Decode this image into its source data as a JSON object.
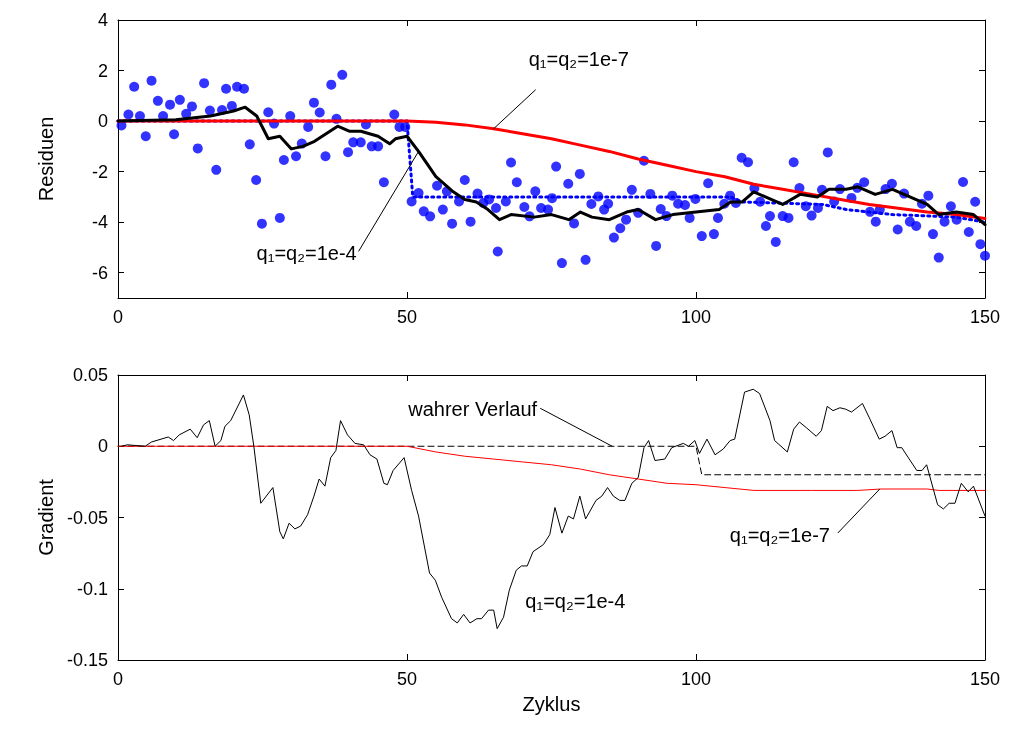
{
  "chart_data": [
    {
      "type": "scatter",
      "ylabel": "Residuen",
      "xlim": [
        0,
        150
      ],
      "xticks": [
        0,
        50,
        100,
        150
      ],
      "ylim": [
        -7,
        4
      ],
      "yticks": [
        -6,
        -4,
        -2,
        0,
        2,
        4
      ],
      "grid": false,
      "series": [
        {
          "color": "#0000ff",
          "marker": "circle",
          "x": [
            0.6,
            1.8,
            2.8,
            3.8,
            4.8,
            5.8,
            6.9,
            7.8,
            9,
            9.7,
            10.7,
            11.8,
            12.8,
            13.8,
            14.9,
            15.9,
            17,
            18,
            18.7,
            19.7,
            20.6,
            21.8,
            22.8,
            23.9,
            24.9,
            26,
            27,
            28,
            28.7,
            29.8,
            30.8,
            31.8,
            32.9,
            33.9,
            34.9,
            35.9,
            36.9,
            37.8,
            38.8,
            39.8,
            40.7,
            42,
            42.9,
            43.9,
            45,
            46,
            47.8,
            48.7,
            49.7,
            50.8,
            52,
            52.9,
            54,
            55.2,
            56.2,
            56.9,
            57.8,
            59,
            60,
            61,
            62.2,
            63.2,
            64.2,
            65.4,
            65.7,
            67.1,
            68,
            69,
            70.3,
            71.2,
            72.2,
            73.2,
            74.4,
            75.1,
            75.8,
            76.8,
            77.9,
            78.9,
            79.9,
            80.9,
            81.9,
            83.1,
            84.1,
            84.8,
            85.8,
            86.9,
            87.9,
            88.9,
            90,
            91,
            92.1,
            93.1,
            93.9,
            94.9,
            95.9,
            96.9,
            98.1,
            98.9,
            99.9,
            101,
            102.1,
            103.1,
            103.8,
            104.9,
            105.9,
            106.9,
            107.9,
            109,
            110.1,
            111.1,
            112.1,
            112.8,
            113.8,
            115,
            116,
            116.9,
            117.9,
            119,
            120,
            121.1,
            121.8,
            122.8,
            123.9,
            124.9,
            126.9,
            127.9,
            129.1,
            130.1,
            131.1,
            131.8,
            132.8,
            133.9,
            134.9,
            136,
            137,
            138.1,
            139.1,
            140.2,
            141,
            142,
            143,
            144.1,
            145.1,
            146.2,
            147.2,
            148.3,
            149.2,
            150
          ],
          "values": [
            -0.17,
            0.26,
            1.36,
            0.2,
            -0.6,
            1.6,
            0.8,
            0.2,
            0.65,
            -0.52,
            0.84,
            0.29,
            0.58,
            -1.08,
            1.5,
            0.42,
            -1.93,
            0.44,
            1.28,
            0.6,
            1.36,
            1.28,
            -0.92,
            -2.33,
            -4.06,
            0.35,
            -0.1,
            -3.83,
            -1.54,
            0.2,
            -1.39,
            -0.89,
            -0.23,
            0.73,
            0.34,
            -1.39,
            1.44,
            0.09,
            1.83,
            -1.23,
            -0.84,
            -0.84,
            -0.13,
            -1,
            -1,
            -2.42,
            0.26,
            -0.23,
            -0.23,
            -3.18,
            -2.85,
            -3.57,
            -3.77,
            -2.56,
            -3.5,
            -2.78,
            -4.06,
            -3.18,
            -2.33,
            -3.98,
            -2.87,
            -3.24,
            -3.1,
            -3.44,
            -5.16,
            -3.18,
            -1.64,
            -2.42,
            -3.4,
            -3.77,
            -2.78,
            -3.44,
            -3.5,
            -3.05,
            -1.8,
            -5.62,
            -2.48,
            -4.05,
            -2.09,
            -5.49,
            -3.28,
            -2.98,
            -3.5,
            -3.27,
            -4.61,
            -4.24,
            -3.9,
            -2.72,
            -3.63,
            -1.57,
            -2.88,
            -4.94,
            -3.48,
            -3.76,
            -2.95,
            -3.27,
            -3.32,
            -3.83,
            -3.08,
            -4.55,
            -2.46,
            -4.47,
            -3.83,
            -3.27,
            -2.95,
            -3.24,
            -1.45,
            -1.63,
            -2.66,
            -3.19,
            -4.15,
            -3.76,
            -4.78,
            -3.76,
            -3.83,
            -1.63,
            -2.65,
            -3.37,
            -3.74,
            -3.44,
            -2.72,
            -1.24,
            -3.18,
            -2.69,
            -3.04,
            -2.64,
            -2.42,
            -3.59,
            -3.98,
            -3.5,
            -2.69,
            -2.48,
            -4.29,
            -2.87,
            -3.98,
            -4.15,
            -3.27,
            -2.95,
            -4.47,
            -5.4,
            -3.98,
            -3.37,
            -3.9,
            -2.41,
            -4.39,
            -3.19,
            -4.87,
            -5.33
          ]
        },
        {
          "type": "line",
          "color": "#0000ff",
          "line_style": "dotted",
          "x": [
            0,
            50,
            51,
            106,
            108,
            122,
            126,
            134,
            145,
            150
          ],
          "values": [
            0,
            0,
            -3,
            -3,
            -3.2,
            -3.3,
            -3.5,
            -3.7,
            -3.8,
            -4
          ]
        },
        {
          "type": "line",
          "color": "#ff0000",
          "line_style": "solid",
          "x": [
            0,
            50,
            55,
            60,
            65,
            70,
            75,
            80,
            85,
            90,
            95,
            100,
            105,
            110,
            115,
            120,
            125,
            130,
            135,
            140,
            145,
            150
          ],
          "values": [
            0,
            0,
            -0.05,
            -0.15,
            -0.3,
            -0.5,
            -0.7,
            -0.95,
            -1.2,
            -1.5,
            -1.75,
            -2,
            -2.2,
            -2.5,
            -2.7,
            -2.9,
            -3.1,
            -3.3,
            -3.45,
            -3.6,
            -3.7,
            -3.85
          ]
        },
        {
          "type": "line",
          "color": "#000000",
          "line_style": "solid",
          "x": [
            0,
            10,
            16,
            20,
            22,
            24,
            26,
            28,
            30,
            32,
            34,
            36,
            38,
            40,
            42,
            45,
            47,
            48,
            50,
            52,
            55,
            58,
            60,
            62,
            64,
            66,
            68,
            72,
            75,
            78,
            80,
            82,
            85,
            88,
            90,
            93,
            96,
            100,
            104,
            106,
            108,
            110,
            113,
            115,
            118,
            121,
            123,
            126,
            128,
            131,
            134,
            137,
            140,
            142,
            145,
            148,
            150
          ],
          "values": [
            0,
            0.05,
            0.2,
            0.4,
            0.55,
            0.2,
            -0.7,
            -0.6,
            -1.1,
            -1,
            -0.8,
            -0.5,
            -0.2,
            -0.4,
            -0.4,
            -0.6,
            -0.9,
            -0.7,
            -0.6,
            -1.2,
            -2.2,
            -2.8,
            -3.1,
            -3.2,
            -3.5,
            -3.9,
            -3.7,
            -3.8,
            -3.7,
            -3.9,
            -3.6,
            -3.8,
            -3.9,
            -3.6,
            -3.5,
            -3.9,
            -3.7,
            -3.6,
            -3.5,
            -3.2,
            -3.2,
            -2.8,
            -3.1,
            -3.3,
            -2.9,
            -3,
            -2.7,
            -2.7,
            -2.6,
            -2.9,
            -2.7,
            -3,
            -3.3,
            -3.7,
            -3.6,
            -3.7,
            -4.1
          ]
        }
      ],
      "annotations": [
        {
          "text": "q₁=q₂=1e-7",
          "x": 65,
          "y": -0.3
        },
        {
          "text": "q₁=q₂=1e-4",
          "x": 52,
          "y": -1.2
        }
      ]
    },
    {
      "type": "line",
      "xlabel": "Zyklus",
      "ylabel": "Gradient",
      "xlim": [
        0,
        150
      ],
      "xticks": [
        0,
        50,
        100,
        150
      ],
      "ylim": [
        -0.15,
        0.05
      ],
      "yticks": [
        -0.15,
        -0.1,
        -0.05,
        0,
        0.05
      ],
      "grid": false,
      "series": [
        {
          "color": "#000000",
          "line_style": "dashed",
          "x": [
            0,
            100,
            101,
            150
          ],
          "values": [
            0,
            0,
            -0.02,
            -0.02
          ]
        },
        {
          "color": "#ff0000",
          "line_style": "solid",
          "x": [
            0,
            50,
            55,
            60,
            65,
            70,
            75,
            80,
            85,
            90,
            95,
            100,
            105,
            110,
            120,
            128,
            132,
            140,
            142,
            150
          ],
          "values": [
            0,
            0,
            -0.004,
            -0.007,
            -0.009,
            -0.011,
            -0.013,
            -0.016,
            -0.02,
            -0.023,
            -0.026,
            -0.027,
            -0.029,
            -0.031,
            -0.031,
            -0.031,
            -0.03,
            -0.03,
            -0.031,
            -0.031
          ]
        },
        {
          "color": "#000000",
          "line_style": "solid",
          "x": [
            0.6,
            1.6,
            4.7,
            5.8,
            8.7,
            9.6,
            10.6,
            12.5,
            13.7,
            14.8,
            15.8,
            16.8,
            17.8,
            18.5,
            19.5,
            21.7,
            22.7,
            23.5,
            24.7,
            26.8,
            28,
            28.6,
            29.6,
            30.6,
            31.6,
            32.8,
            33.9,
            34.8,
            35.8,
            36.8,
            37.7,
            38.5,
            39.7,
            41,
            42.5,
            43.6,
            44.8,
            46,
            46.6,
            47.6,
            49.5,
            50.8,
            52,
            53.9,
            54.9,
            56,
            57.7,
            58.7,
            59.8,
            60.9,
            62.1,
            62.9,
            64.1,
            65,
            65.6,
            66.7,
            67.7,
            68.9,
            69.8,
            70.8,
            71.8,
            73.6,
            74.7,
            75.6,
            76.8,
            77.9,
            78.8,
            79.9,
            80.9,
            82.7,
            83.7,
            84.7,
            85.7,
            86.8,
            87.7,
            88.9,
            90,
            91,
            91.8,
            92.9,
            94.6,
            95.8,
            97.8,
            98.7,
            99.8,
            100.6,
            101.9,
            103.3,
            104.7,
            105.9,
            106.7,
            108.4,
            109.9,
            111,
            112.8,
            113.6,
            115.8,
            116.9,
            117.9,
            119.1,
            120.8,
            121.7,
            122.7,
            123.7,
            124.9,
            125.9,
            126.9,
            128.8,
            130.1,
            131.7,
            132.7,
            133.9,
            134.8,
            135.6,
            138.2,
            139.1,
            139.9,
            141.8,
            142.8,
            143.8,
            144.8,
            145.9,
            147.1,
            148,
            150
          ],
          "values": [
            0,
            0.001,
            0,
            0.003,
            0.0065,
            0.004,
            0.008,
            0.012,
            0.006,
            0.015,
            0.018,
            0,
            0.004,
            0.014,
            0.018,
            0.036,
            0.022,
            0,
            -0.04,
            -0.029,
            -0.06,
            -0.065,
            -0.054,
            -0.058,
            -0.056,
            -0.048,
            -0.035,
            -0.023,
            -0.028,
            -0.008,
            -0.003,
            0.018,
            0.008,
            0.002,
            0.001,
            -0.006,
            -0.009,
            -0.026,
            -0.027,
            -0.017,
            -0.008,
            -0.031,
            -0.049,
            -0.089,
            -0.094,
            -0.106,
            -0.121,
            -0.124,
            -0.118,
            -0.124,
            -0.121,
            -0.121,
            -0.115,
            -0.115,
            -0.128,
            -0.12,
            -0.101,
            -0.087,
            -0.084,
            -0.084,
            -0.074,
            -0.069,
            -0.062,
            -0.043,
            -0.061,
            -0.049,
            -0.051,
            -0.035,
            -0.051,
            -0.038,
            -0.035,
            -0.029,
            -0.035,
            -0.038,
            -0.038,
            -0.026,
            -0.022,
            -0.001,
            0.004,
            -0.01,
            -0.009,
            -0.001,
            0.002,
            0,
            0.004,
            -0.005,
            0.005,
            -0.006,
            -0.002,
            0.004,
            0.005,
            0.038,
            0.04,
            0.037,
            0.018,
            0.004,
            -0.004,
            0.012,
            0.017,
            0.013,
            0.007,
            0.011,
            0.028,
            0.025,
            0.027,
            0.026,
            0.024,
            0.03,
            0.019,
            0.005,
            0.007,
            0.011,
            -0.001,
            -0.001,
            -0.017,
            -0.017,
            -0.013,
            -0.041,
            -0.044,
            -0.04,
            -0.04,
            -0.026,
            -0.032,
            -0.028,
            -0.049
          ]
        }
      ],
      "annotations": [
        {
          "text": "wahrer Verlauf",
          "x": 85.5,
          "y": 0
        },
        {
          "text": "q₁=q₂=1e-7",
          "x": 131.8,
          "y": -0.03
        },
        {
          "text": "q₁=q₂=1e-4",
          "x": 67,
          "y": -0.12
        }
      ]
    }
  ]
}
